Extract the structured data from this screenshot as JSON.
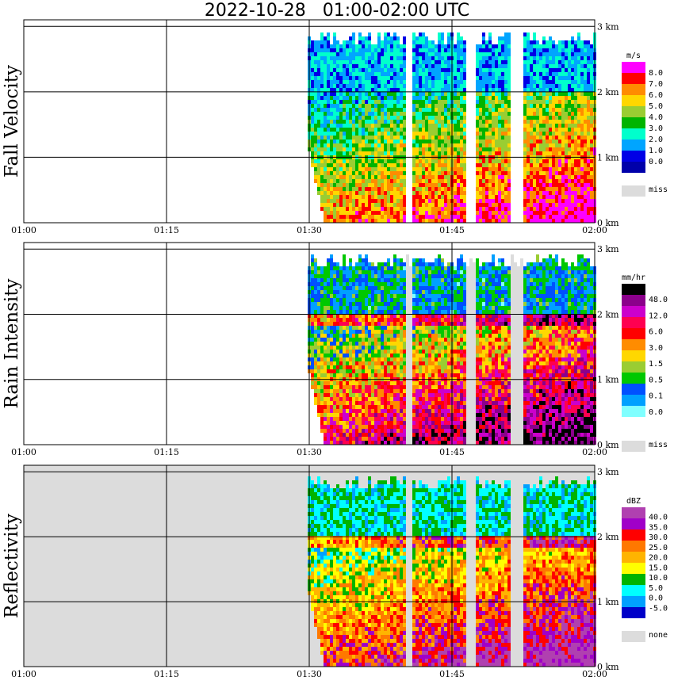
{
  "title": "2022-10-28   01:00-02:00 UTC",
  "colors": {
    "miss": "#dcdcdc",
    "grid": "#000000"
  },
  "chart_data": [
    {
      "type": "heatmap",
      "ylabel": "Fall Velocity",
      "x_ticks": [
        "01:00",
        "01:15",
        "01:30",
        "01:45",
        "02:00"
      ],
      "y_ticks": [
        "3 km",
        "2 km",
        "1 km",
        "0 km"
      ],
      "ylim": [
        0,
        3.1
      ],
      "legend": {
        "unit": "m/s",
        "labels": [
          "8.0",
          "7.0",
          "6.0",
          "5.0",
          "4.0",
          "3.0",
          "2.0",
          "1.0",
          "0.0"
        ],
        "colors": [
          "#ff00ff",
          "#ff0000",
          "#ff8c00",
          "#ffd700",
          "#9acd32",
          "#00b400",
          "#00ffcc",
          "#00a5ff",
          "#0000e6",
          "#0000aa"
        ],
        "miss_label": "miss"
      },
      "background": "#ffffff"
    },
    {
      "type": "heatmap",
      "ylabel": "Rain Intensity",
      "x_ticks": [
        "01:00",
        "01:15",
        "01:30",
        "01:45",
        "02:00"
      ],
      "y_ticks": [
        "3 km",
        "2 km",
        "1 km",
        "0 km"
      ],
      "ylim": [
        0,
        3.1
      ],
      "legend": {
        "unit": "mm/hr",
        "labels": [
          "48.0",
          "12.0",
          "6.0",
          "3.0",
          "1.5",
          "0.5",
          "0.1",
          "0.0"
        ],
        "colors": [
          "#000000",
          "#8b008b",
          "#cc00cc",
          "#ff0050",
          "#ff0000",
          "#ff8c00",
          "#ffd700",
          "#9acd32",
          "#00c800",
          "#0050ff",
          "#00a0ff",
          "#80ffff",
          "#ffffff"
        ],
        "miss_label": "miss"
      },
      "background": "#ffffff"
    },
    {
      "type": "heatmap",
      "ylabel": "Reflectivity",
      "x_ticks": [
        "01:00",
        "01:15",
        "01:30",
        "01:45",
        "02:00"
      ],
      "y_ticks": [
        "3 km",
        "2 km",
        "1 km",
        "0 km"
      ],
      "ylim": [
        0,
        3.1
      ],
      "legend": {
        "unit": "dBZ",
        "labels": [
          "40.0",
          "35.0",
          "30.0",
          "25.0",
          "20.0",
          "15.0",
          "10.0",
          "5.0",
          "0.0",
          "-5.0"
        ],
        "colors": [
          "#b040b0",
          "#a000c8",
          "#ff0000",
          "#ff7800",
          "#ffb400",
          "#ffff00",
          "#00b400",
          "#00ffff",
          "#00a0ff",
          "#0000c8"
        ],
        "miss_label": "none"
      },
      "background": "#dcdcdc"
    }
  ]
}
